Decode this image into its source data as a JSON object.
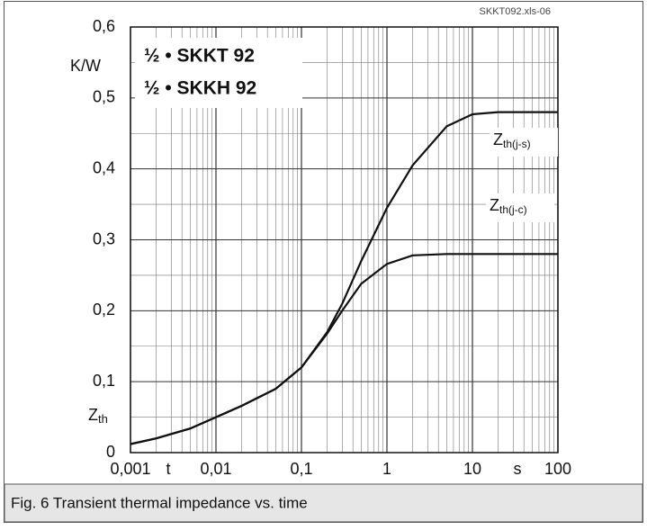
{
  "chart_data": {
    "type": "line",
    "source_id": "SKKT092.xls-06",
    "annotations": [
      "½ • SKKT 92",
      "½ • SKKH 92"
    ],
    "y_unit": "K/W",
    "y_label": "Zth",
    "x_label": "t",
    "x_unit": "s",
    "caption": "Fig. 6 Transient thermal impedance vs. time",
    "x_log": true,
    "grid": true,
    "xlim": [
      0.001,
      100
    ],
    "ylim": [
      0,
      0.6
    ],
    "xticks": [
      {
        "value": 0.001,
        "label": "0,001"
      },
      {
        "value": 0.01,
        "label": "0,01"
      },
      {
        "value": 0.1,
        "label": "0,1"
      },
      1,
      10,
      100
    ],
    "yticks": [
      0,
      {
        "value": 0.1,
        "label": "0,1"
      },
      {
        "value": 0.2,
        "label": "0,2"
      },
      {
        "value": 0.3,
        "label": "0,3"
      },
      {
        "value": 0.4,
        "label": "0,4"
      },
      {
        "value": 0.5,
        "label": "0,5"
      },
      {
        "value": 0.6,
        "label": "0,6"
      }
    ],
    "x": [
      0.001,
      0.002,
      0.005,
      0.01,
      0.02,
      0.05,
      0.1,
      0.2,
      0.3,
      0.5,
      1,
      2,
      5,
      10,
      20,
      50,
      100
    ],
    "series": [
      {
        "name": "Zth(j-s)",
        "color": "#111111",
        "values": [
          0.012,
          0.02,
          0.034,
          0.05,
          0.066,
          0.09,
          0.12,
          0.17,
          0.21,
          0.27,
          0.345,
          0.405,
          0.46,
          0.477,
          0.48,
          0.48,
          0.48
        ]
      },
      {
        "name": "Zth(j-c)",
        "color": "#111111",
        "values": [
          0.012,
          0.02,
          0.034,
          0.05,
          0.066,
          0.09,
          0.12,
          0.168,
          0.2,
          0.238,
          0.266,
          0.278,
          0.28,
          0.28,
          0.28,
          0.28,
          0.28
        ]
      }
    ]
  }
}
